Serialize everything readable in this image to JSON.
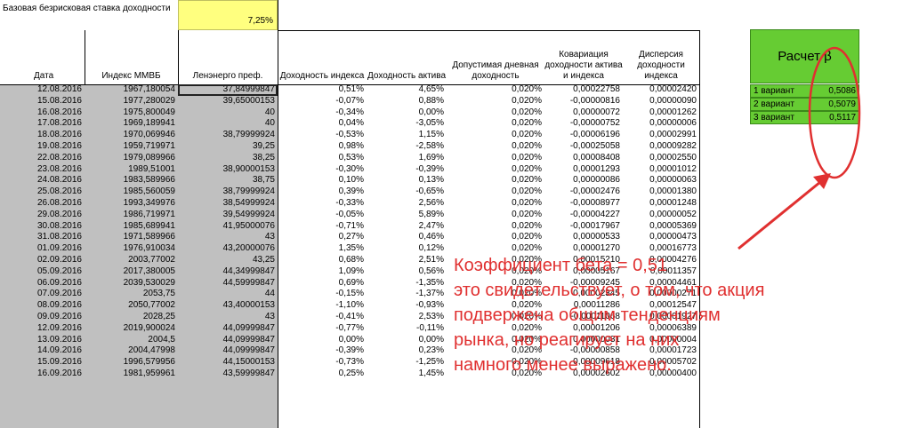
{
  "rate": {
    "label": "Базовая безрисковая ставка доходности",
    "value": "7,25%"
  },
  "headers": {
    "date": "Дата",
    "mmvb": "Индекс ММВБ",
    "lenenergo": "Ленэнерго преф.",
    "index_return": "Доходность индекса",
    "asset_return": "Доходность актива",
    "allowed_daily": "Допустимая дневная доходность",
    "covariance": "Ковариация доходности актива и индекса",
    "variance": "Дисперсия доходности индекса"
  },
  "rows": [
    [
      "12.08.2016",
      "1967,180054",
      "37,84999847",
      "0,51%",
      "4,65%",
      "0,020%",
      "0,00022758",
      "0,00002420"
    ],
    [
      "15.08.2016",
      "1977,280029",
      "39,65000153",
      "-0,07%",
      "0,88%",
      "0,020%",
      "-0,00000816",
      "0,00000090"
    ],
    [
      "16.08.2016",
      "1975,800049",
      "40",
      "-0,34%",
      "0,00%",
      "0,020%",
      "0,00000072",
      "0,00001262"
    ],
    [
      "17.08.2016",
      "1969,189941",
      "40",
      "0,04%",
      "-3,05%",
      "0,020%",
      "-0,00000752",
      "0,00000006"
    ],
    [
      "18.08.2016",
      "1970,069946",
      "38,79999924",
      "-0,53%",
      "1,15%",
      "0,020%",
      "-0,00006196",
      "0,00002991"
    ],
    [
      "19.08.2016",
      "1959,719971",
      "39,25",
      "0,98%",
      "-2,58%",
      "0,020%",
      "-0,00025058",
      "0,00009282"
    ],
    [
      "22.08.2016",
      "1979,089966",
      "38,25",
      "0,53%",
      "1,69%",
      "0,020%",
      "0,00008408",
      "0,00002550"
    ],
    [
      "23.08.2016",
      "1989,51001",
      "38,90000153",
      "-0,30%",
      "-0,39%",
      "0,020%",
      "0,00001293",
      "0,00001012"
    ],
    [
      "24.08.2016",
      "1983,589966",
      "38,75",
      "0,10%",
      "0,13%",
      "0,020%",
      "0,00000086",
      "0,00000063"
    ],
    [
      "25.08.2016",
      "1985,560059",
      "38,79999924",
      "0,39%",
      "-0,65%",
      "0,020%",
      "-0,00002476",
      "0,00001380"
    ],
    [
      "26.08.2016",
      "1993,349976",
      "38,54999924",
      "-0,33%",
      "2,56%",
      "0,020%",
      "-0,00008977",
      "0,00001248"
    ],
    [
      "29.08.2016",
      "1986,719971",
      "39,54999924",
      "-0,05%",
      "5,89%",
      "0,020%",
      "-0,00004227",
      "0,00000052"
    ],
    [
      "30.08.2016",
      "1985,689941",
      "41,95000076",
      "-0,71%",
      "2,47%",
      "0,020%",
      "-0,00017967",
      "0,00005369"
    ],
    [
      "31.08.2016",
      "1971,589966",
      "43",
      "0,27%",
      "0,46%",
      "0,020%",
      "0,00000533",
      "0,00000473"
    ],
    [
      "01.09.2016",
      "1976,910034",
      "43,20000076",
      "1,35%",
      "0,12%",
      "0,020%",
      "0,00001270",
      "0,00016773"
    ],
    [
      "02.09.2016",
      "2003,77002",
      "43,25",
      "0,68%",
      "2,51%",
      "0,020%",
      "0,00015210",
      "0,00004276"
    ],
    [
      "05.09.2016",
      "2017,380005",
      "44,34999847",
      "1,09%",
      "0,56%",
      "0,020%",
      "0,00005167",
      "0,00011357"
    ],
    [
      "06.09.2016",
      "2039,530029",
      "44,59999847",
      "0,69%",
      "-1,35%",
      "0,020%",
      "-0,00009245",
      "0,00004461"
    ],
    [
      "07.09.2016",
      "2053,75",
      "44",
      "-0,15%",
      "-1,37%",
      "0,020%",
      "0,00002345",
      "0,00000271"
    ],
    [
      "08.09.2016",
      "2050,77002",
      "43,40000153",
      "-1,10%",
      "-0,93%",
      "0,020%",
      "0,00011286",
      "0,00012547"
    ],
    [
      "09.09.2016",
      "2028,25",
      "43",
      "-0,41%",
      "2,53%",
      "0,020%",
      "-0,00011068",
      "0,00001927"
    ],
    [
      "12.09.2016",
      "2019,900024",
      "44,09999847",
      "-0,77%",
      "-0,11%",
      "0,020%",
      "0,00001206",
      "0,00006389"
    ],
    [
      "13.09.2016",
      "2004,5",
      "44,09999847",
      "0,00%",
      "0,00%",
      "0,020%",
      "0,00000031",
      "0,00000004"
    ],
    [
      "14.09.2016",
      "2004,47998",
      "44,09999847",
      "-0,39%",
      "0,23%",
      "0,020%",
      "-0,00000858",
      "0,00001723"
    ],
    [
      "15.09.2016",
      "1996,579956",
      "44,15000153",
      "-0,73%",
      "-1,25%",
      "0,020%",
      "0,00009618",
      "0,00005702"
    ],
    [
      "16.09.2016",
      "1981,959961",
      "43,59999847",
      "0,25%",
      "1,45%",
      "0,020%",
      "0,00002602",
      "0,00000400"
    ]
  ],
  "beta": {
    "title": "Расчет β",
    "variants": [
      {
        "label": "1 вариант",
        "value": "0,5086"
      },
      {
        "label": "2 вариант",
        "value": "0,5079"
      },
      {
        "label": "3 вариант",
        "value": "0,5117"
      }
    ]
  },
  "annotation": {
    "lines": [
      "Коэффициент бета = 0,51",
      "это свидетельствует, о том, что акция",
      "подвержена общим тенденциям",
      "рынка, но реагирует на них",
      "намного менее выражено."
    ]
  },
  "colors": {
    "annotation": "#e03030",
    "beta_fill": "#66cc33",
    "rate_fill": "#ffff7f",
    "gray_fill": "#c0c0c0"
  }
}
